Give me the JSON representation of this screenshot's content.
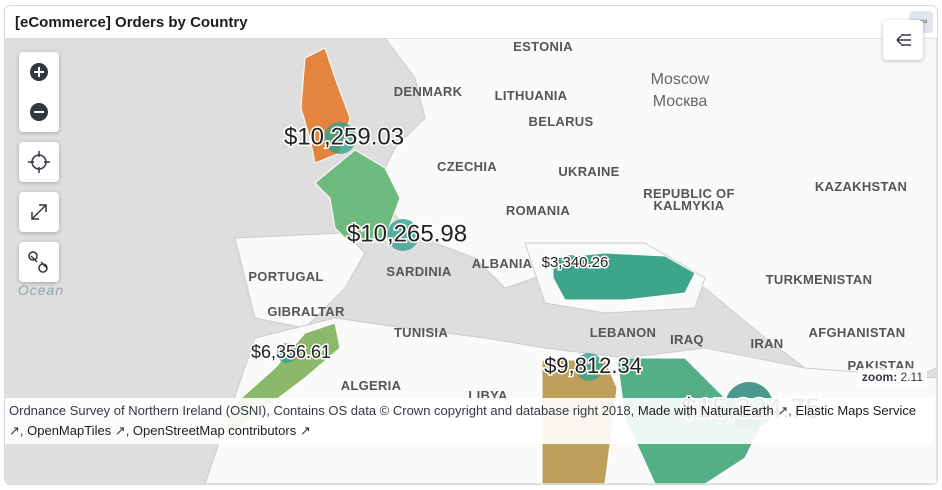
{
  "header": {
    "title": "[eCommerce] Orders by Country",
    "menu": "▫▫▫"
  },
  "map_labels": [
    "ESTONIA",
    "DENMARK",
    "LITHUANIA",
    "BELARUS",
    "CZECHIA",
    "UKRAINE",
    "REPUBLIC OF",
    "KALMYKIA",
    "KAZAKHSTAN",
    "ROMANIA",
    "SARDINIA",
    "ALBANIA",
    "PORTUGAL",
    "TURKMENISTAN",
    "GIBRALTAR",
    "TUNISIA",
    "LEBANON",
    "IRAQ",
    "AFGHANISTAN",
    "IRAN",
    "PAKISTAN",
    "ALGERIA",
    "LIBYA"
  ],
  "cities": [
    "Moscow",
    "Москва"
  ],
  "ocean": "Ocean",
  "bubbles": [
    "$10,259.03",
    "$10,265.98",
    "$3,340.26",
    "$6,356.61",
    "$9,812.34",
    "$15,324.75"
  ],
  "zoom": {
    "label": "zoom:",
    "value": "2.11"
  },
  "attribution": {
    "text1": "Ordnance Survey of Northern Ireland (OSNI), Contains OS data © Crown copyright and database right 2018,",
    "link1": "Made with NaturalEarth",
    "link2": "Elastic Maps Service",
    "link3": "OpenMapTiles",
    "link4": "OpenStreetMap contributors"
  }
}
